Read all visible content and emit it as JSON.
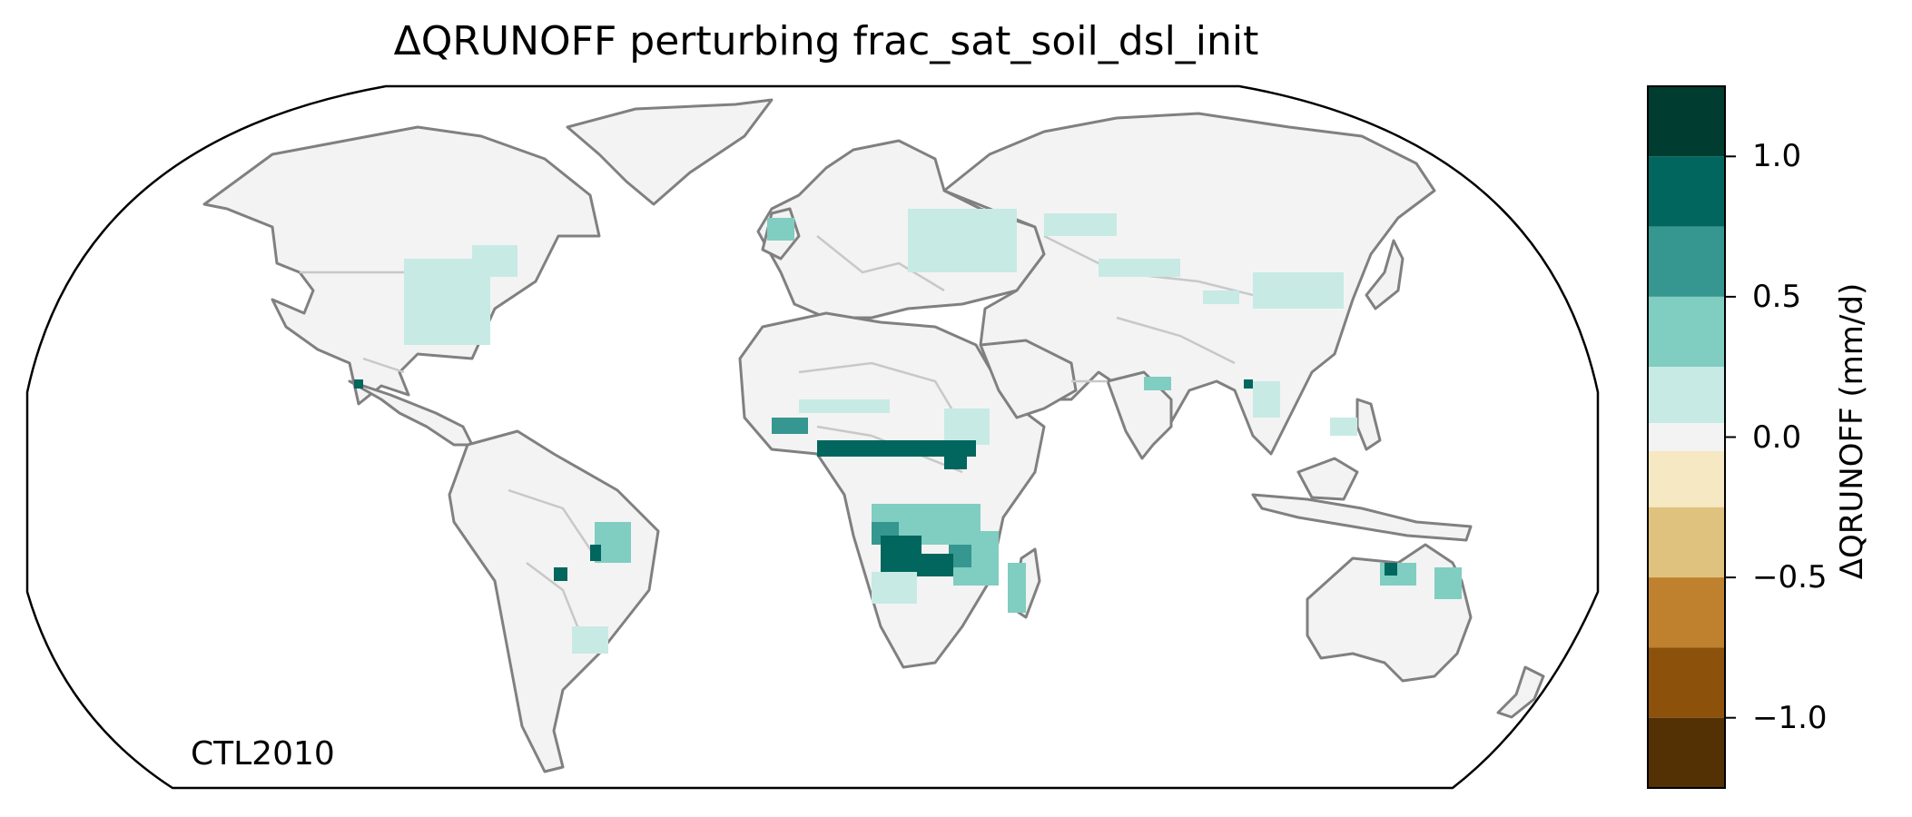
{
  "title": "ΔQRUNOFF perturbing frac_sat_soil_dsl_init",
  "corner_label": "CTL2010",
  "colorbar": {
    "label": "ΔQRUNOFF (mm/d)",
    "ticks": [
      {
        "value": 1.0,
        "label": "1.0"
      },
      {
        "value": 0.5,
        "label": "0.5"
      },
      {
        "value": 0.0,
        "label": "0.0"
      },
      {
        "value": -0.5,
        "label": "−0.5"
      },
      {
        "value": -1.0,
        "label": "−1.0"
      }
    ],
    "range": [
      -1.25,
      1.25
    ],
    "bins": [
      {
        "from": 1.0,
        "to": 1.25,
        "color": "#003c30"
      },
      {
        "from": 0.75,
        "to": 1.0,
        "color": "#01665e"
      },
      {
        "from": 0.5,
        "to": 0.75,
        "color": "#35978f"
      },
      {
        "from": 0.25,
        "to": 0.5,
        "color": "#80cdc1"
      },
      {
        "from": 0.05,
        "to": 0.25,
        "color": "#c7eae5"
      },
      {
        "from": -0.05,
        "to": 0.05,
        "color": "#f3f3f3"
      },
      {
        "from": -0.25,
        "to": -0.05,
        "color": "#f6e8c3"
      },
      {
        "from": -0.5,
        "to": -0.25,
        "color": "#dfc27d"
      },
      {
        "from": -0.75,
        "to": -0.5,
        "color": "#bf812d"
      },
      {
        "from": -1.0,
        "to": -0.75,
        "color": "#8c510a"
      },
      {
        "from": -1.25,
        "to": -1.0,
        "color": "#543005"
      }
    ]
  },
  "colors": {
    "land": "#f3f3f3",
    "coastline": "#808080",
    "borders": "#c8c8c8",
    "frame": "#000000"
  }
}
